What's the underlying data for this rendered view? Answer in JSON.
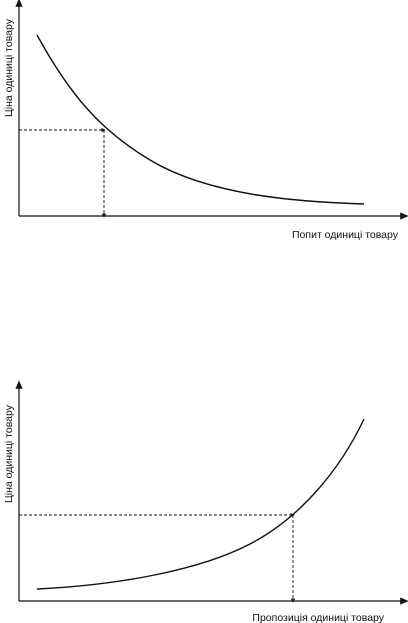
{
  "chart_data": [
    {
      "type": "line",
      "xlabel": "Попит одиниці товару",
      "ylabel": "Ціна одиниці товару",
      "grid": false,
      "shape": "decreasing-convex",
      "marked_point": {
        "dashed_guides": true
      }
    },
    {
      "type": "line",
      "xlabel": "Пропозиція одиниці товару",
      "ylabel": "Ціна одиниці товару",
      "grid": false,
      "shape": "increasing-convex",
      "marked_point": {
        "dashed_guides": true
      }
    }
  ],
  "colors": {
    "line": "#111111",
    "background": "#ffffff"
  }
}
